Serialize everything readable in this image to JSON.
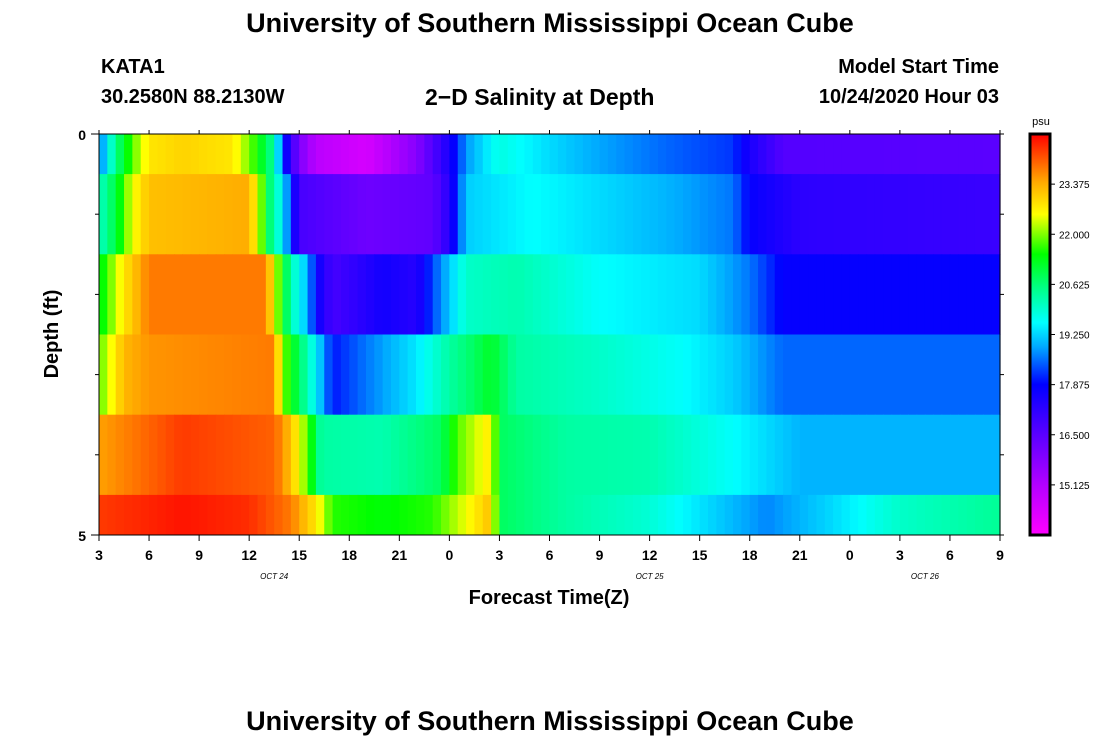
{
  "header": {
    "title": "University of Southern Mississippi Ocean Cube",
    "station_id": "KATA1",
    "station_coords": "30.2580N 88.2130W",
    "plot_title": "2−D Salinity at Depth",
    "model_label": "Model Start Time",
    "model_time": "10/24/2020 Hour 03"
  },
  "footer": {
    "title": "University of Southern Mississippi Ocean Cube"
  },
  "chart_data": {
    "type": "heatmap",
    "title": "2−D Salinity at Depth",
    "xlabel": "Forecast Time(Z)",
    "ylabel": "Depth (ft)",
    "ylim": [
      0,
      5
    ],
    "y_tick_labels": [
      "0",
      "5"
    ],
    "x_range_hours": [
      0,
      54
    ],
    "x_ticks": [
      {
        "hour": 0,
        "label": "3"
      },
      {
        "hour": 3,
        "label": "6"
      },
      {
        "hour": 6,
        "label": "9"
      },
      {
        "hour": 9,
        "label": "12"
      },
      {
        "hour": 12,
        "label": "15"
      },
      {
        "hour": 15,
        "label": "18"
      },
      {
        "hour": 18,
        "label": "21"
      },
      {
        "hour": 21,
        "label": "0"
      },
      {
        "hour": 24,
        "label": "3"
      },
      {
        "hour": 27,
        "label": "6"
      },
      {
        "hour": 30,
        "label": "9"
      },
      {
        "hour": 33,
        "label": "12"
      },
      {
        "hour": 36,
        "label": "15"
      },
      {
        "hour": 39,
        "label": "18"
      },
      {
        "hour": 42,
        "label": "21"
      },
      {
        "hour": 45,
        "label": "0"
      },
      {
        "hour": 48,
        "label": "3"
      },
      {
        "hour": 51,
        "label": "6"
      },
      {
        "hour": 54,
        "label": "9"
      }
    ],
    "date_labels": [
      {
        "hour": 10.5,
        "label": "OCT 24"
      },
      {
        "hour": 33,
        "label": "OCT 25"
      },
      {
        "hour": 49.5,
        "label": "OCT 26"
      }
    ],
    "colorbar": {
      "unit": "psu",
      "min": 13.75,
      "max": 24.75,
      "ticks": [
        "23.375",
        "22.000",
        "20.625",
        "19.250",
        "17.875",
        "16.500",
        "15.125"
      ]
    },
    "depth_layers": [
      {
        "name": "layer-1",
        "depth_range": [
          0,
          0.5
        ],
        "keyframes": [
          [
            0,
            18.5
          ],
          [
            1,
            20.5
          ],
          [
            2,
            21.8
          ],
          [
            3,
            22.8
          ],
          [
            5,
            23.0
          ],
          [
            8,
            22.8
          ],
          [
            9.5,
            21.5
          ],
          [
            10.5,
            20.3
          ],
          [
            11,
            18.2
          ],
          [
            12,
            16.0
          ],
          [
            13,
            15.0
          ],
          [
            16,
            14.5
          ],
          [
            19,
            15.8
          ],
          [
            21,
            17.5
          ],
          [
            22,
            18.8
          ],
          [
            24,
            19.8
          ],
          [
            27,
            19.3
          ],
          [
            30,
            18.9
          ],
          [
            34,
            18.5
          ],
          [
            38,
            18.2
          ],
          [
            39,
            17.5
          ],
          [
            41,
            16.6
          ],
          [
            54,
            16.5
          ]
        ]
      },
      {
        "name": "layer-2",
        "depth_range": [
          0.5,
          1.5
        ],
        "keyframes": [
          [
            0,
            20.0
          ],
          [
            1,
            21.0
          ],
          [
            2,
            22.5
          ],
          [
            3,
            23.2
          ],
          [
            9,
            23.4
          ],
          [
            9.7,
            22.0
          ],
          [
            10.3,
            20.5
          ],
          [
            11,
            19.5
          ],
          [
            12,
            16.8
          ],
          [
            16,
            16.2
          ],
          [
            20,
            16.4
          ],
          [
            21,
            17.3
          ],
          [
            22,
            19.2
          ],
          [
            26,
            19.6
          ],
          [
            30,
            19.3
          ],
          [
            34,
            19.0
          ],
          [
            38,
            18.6
          ],
          [
            39,
            17.8
          ],
          [
            42,
            17.2
          ],
          [
            54,
            17.0
          ]
        ]
      },
      {
        "name": "layer-3",
        "depth_range": [
          1.5,
          2.5
        ],
        "keyframes": [
          [
            0,
            21.2
          ],
          [
            1.5,
            22.8
          ],
          [
            3,
            23.8
          ],
          [
            10,
            23.8
          ],
          [
            10.5,
            22.5
          ],
          [
            11.5,
            20.2
          ],
          [
            12.5,
            19.0
          ],
          [
            13,
            17.8
          ],
          [
            14,
            16.8
          ],
          [
            17,
            17.6
          ],
          [
            19,
            17.3
          ],
          [
            20,
            18.3
          ],
          [
            22,
            20.0
          ],
          [
            25,
            20.2
          ],
          [
            30,
            19.6
          ],
          [
            36,
            19.3
          ],
          [
            39,
            18.6
          ],
          [
            41,
            17.8
          ],
          [
            54,
            17.8
          ]
        ]
      },
      {
        "name": "layer-3b",
        "depth_range": [
          2.5,
          3.5
        ],
        "keyframes": [
          [
            0,
            21.8
          ],
          [
            1.5,
            23.3
          ],
          [
            3,
            23.6
          ],
          [
            10.5,
            23.8
          ],
          [
            11,
            22.0
          ],
          [
            12,
            20.8
          ],
          [
            13,
            19.5
          ],
          [
            14,
            18.0
          ],
          [
            16,
            18.6
          ],
          [
            19,
            19.4
          ],
          [
            21,
            20.3
          ],
          [
            22.5,
            20.8
          ],
          [
            23.5,
            21.2
          ],
          [
            25,
            20.3
          ],
          [
            30,
            20.0
          ],
          [
            35,
            19.6
          ],
          [
            38,
            19.2
          ],
          [
            41,
            18.5
          ],
          [
            54,
            18.5
          ]
        ]
      },
      {
        "name": "layer-4",
        "depth_range": [
          3.5,
          4.5
        ],
        "keyframes": [
          [
            0,
            23.5
          ],
          [
            5,
            24.3
          ],
          [
            10.5,
            24.0
          ],
          [
            11.5,
            23.2
          ],
          [
            12.5,
            21.8
          ],
          [
            13.3,
            20.3
          ],
          [
            17,
            20.2
          ],
          [
            20.5,
            20.8
          ],
          [
            21.5,
            21.8
          ],
          [
            23.5,
            22.8
          ],
          [
            24,
            20.8
          ],
          [
            28,
            20.3
          ],
          [
            33,
            20.2
          ],
          [
            38,
            19.6
          ],
          [
            42,
            19.0
          ],
          [
            54,
            19.0
          ]
        ]
      },
      {
        "name": "layer-5",
        "depth_range": [
          4.5,
          5
        ],
        "keyframes": [
          [
            0,
            24.3
          ],
          [
            5,
            24.6
          ],
          [
            9,
            24.4
          ],
          [
            11.5,
            23.8
          ],
          [
            13,
            22.8
          ],
          [
            14,
            21.6
          ],
          [
            17,
            21.4
          ],
          [
            20,
            21.6
          ],
          [
            22,
            22.5
          ],
          [
            23.5,
            23.2
          ],
          [
            24,
            20.8
          ],
          [
            28,
            20.3
          ],
          [
            33,
            19.9
          ],
          [
            37,
            19.2
          ],
          [
            40,
            18.7
          ],
          [
            44,
            19.3
          ],
          [
            48,
            20.0
          ],
          [
            54,
            20.4
          ]
        ]
      }
    ]
  }
}
